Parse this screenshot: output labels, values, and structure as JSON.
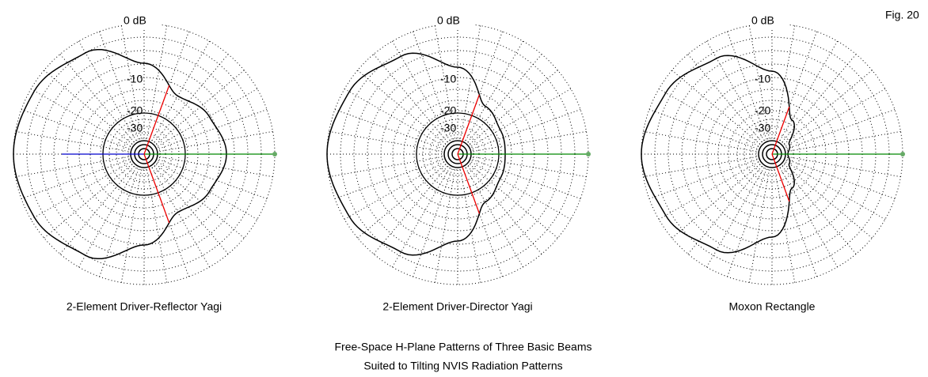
{
  "figure_label": "Fig. 20",
  "plots": [
    {
      "caption": "2-Element Driver-Reflector Yagi",
      "ring_labels": [
        "0 dB",
        "-10",
        "-20",
        "-30"
      ]
    },
    {
      "caption": "2-Element Driver-Director Yagi",
      "ring_labels": [
        "0 dB",
        "-10",
        "-20",
        "-30"
      ]
    },
    {
      "caption": "Moxon Rectangle",
      "ring_labels": [
        "0 dB",
        "-10",
        "-20",
        "-30"
      ]
    }
  ],
  "title_lines": [
    "Free-Space H-Plane Patterns of Three Basic Beams",
    "Suited to Tilting NVIS Radiation Patterns"
  ]
}
